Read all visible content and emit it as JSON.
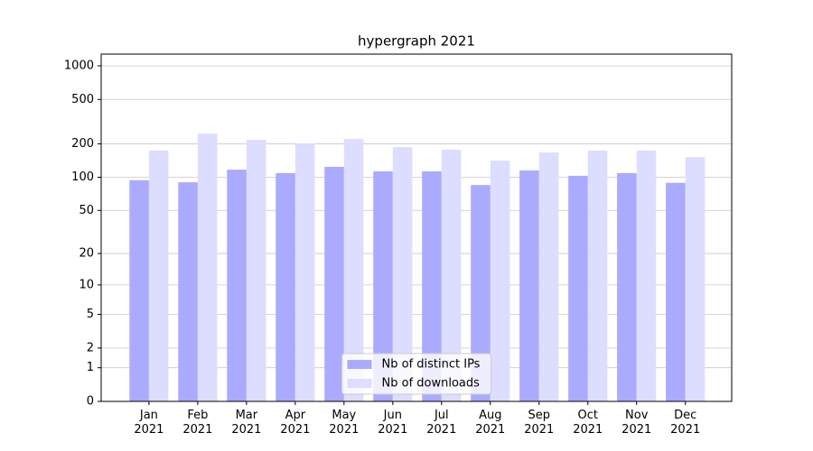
{
  "chart_data": {
    "type": "bar",
    "title": "hypergraph 2021",
    "categories": [
      "Jan\n2021",
      "Feb\n2021",
      "Mar\n2021",
      "Apr\n2021",
      "May\n2021",
      "Jun\n2021",
      "Jul\n2021",
      "Aug\n2021",
      "Sep\n2021",
      "Oct\n2021",
      "Nov\n2021",
      "Dec\n2021"
    ],
    "series": [
      {
        "name": "Nb of distinct IPs",
        "color": "#aaaaff",
        "values": [
          94,
          90,
          117,
          109,
          124,
          113,
          113,
          85,
          115,
          103,
          109,
          89
        ]
      },
      {
        "name": "Nb of downloads",
        "color": "#ddddff",
        "values": [
          174,
          247,
          217,
          201,
          221,
          187,
          177,
          141,
          167,
          174,
          174,
          152
        ]
      }
    ],
    "y_scale": "log1p",
    "ylim": [
      0,
      1273
    ],
    "yticks": [
      0,
      1,
      2,
      5,
      10,
      20,
      50,
      100,
      200,
      500,
      1000
    ],
    "grid": true,
    "legend": "lower center"
  }
}
